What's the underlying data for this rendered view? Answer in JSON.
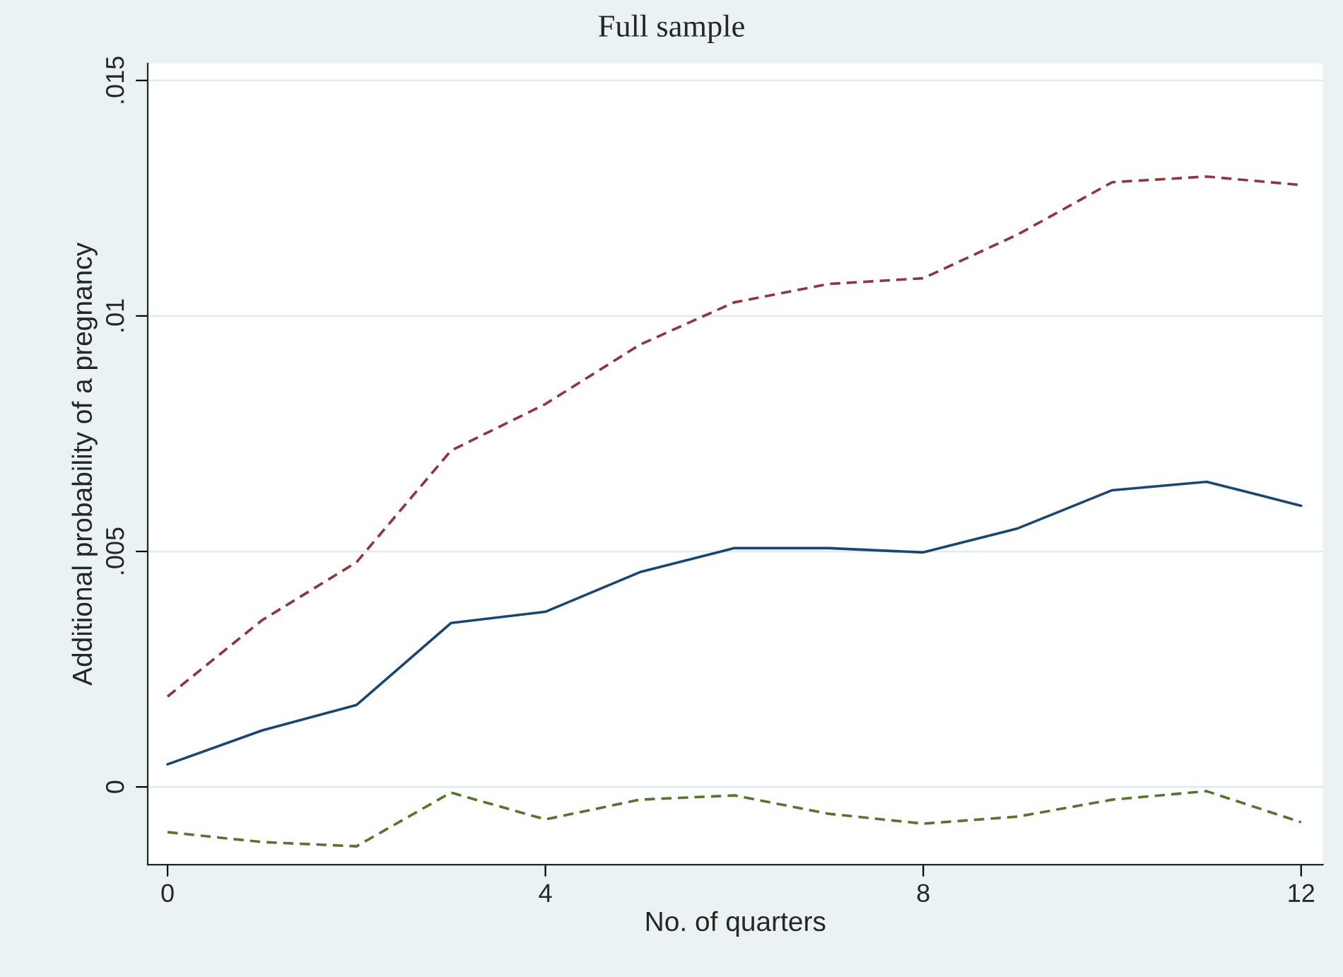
{
  "chart_data": {
    "type": "line",
    "title": "Full sample",
    "xlabel": "No. of quarters",
    "ylabel": "Additional probability of a pregnancy",
    "x": [
      0,
      1,
      2,
      3,
      4,
      5,
      6,
      7,
      8,
      9,
      10,
      11,
      12
    ],
    "series": [
      {
        "color": "#1a476f",
        "line_style": "solid",
        "values": [
          0.00048,
          0.0012,
          0.00174,
          0.00348,
          0.00372,
          0.00456,
          0.00507,
          0.00507,
          0.00498,
          0.00549,
          0.0063,
          0.00648,
          0.00597
        ]
      },
      {
        "color": "#90353b",
        "line_style": "dashed",
        "values": [
          0.00192,
          0.00354,
          0.00477,
          0.00714,
          0.00813,
          0.00939,
          0.01029,
          0.01068,
          0.0108,
          0.01173,
          0.01284,
          0.01296,
          0.01278
        ]
      },
      {
        "color": "#55752f",
        "line_style": "dashed",
        "values": [
          -0.00096,
          -0.00117,
          -0.00126,
          -0.00012,
          -0.00069,
          -0.00027,
          -0.00018,
          -0.00057,
          -0.00078,
          -0.00063,
          -0.00027,
          -9e-05,
          -0.00075
        ]
      }
    ],
    "xlim": [
      -0.21,
      12.23
    ],
    "ylim": [
      -0.00165,
      0.01536
    ],
    "xticks": [
      0,
      4,
      8,
      12
    ],
    "yticks": [
      0,
      {
        "value": 0.005,
        "label": ".005"
      },
      {
        "value": 0.01,
        "label": ".01"
      },
      {
        "value": 0.015,
        "label": ".015"
      }
    ],
    "grid": "y",
    "legend": false
  }
}
